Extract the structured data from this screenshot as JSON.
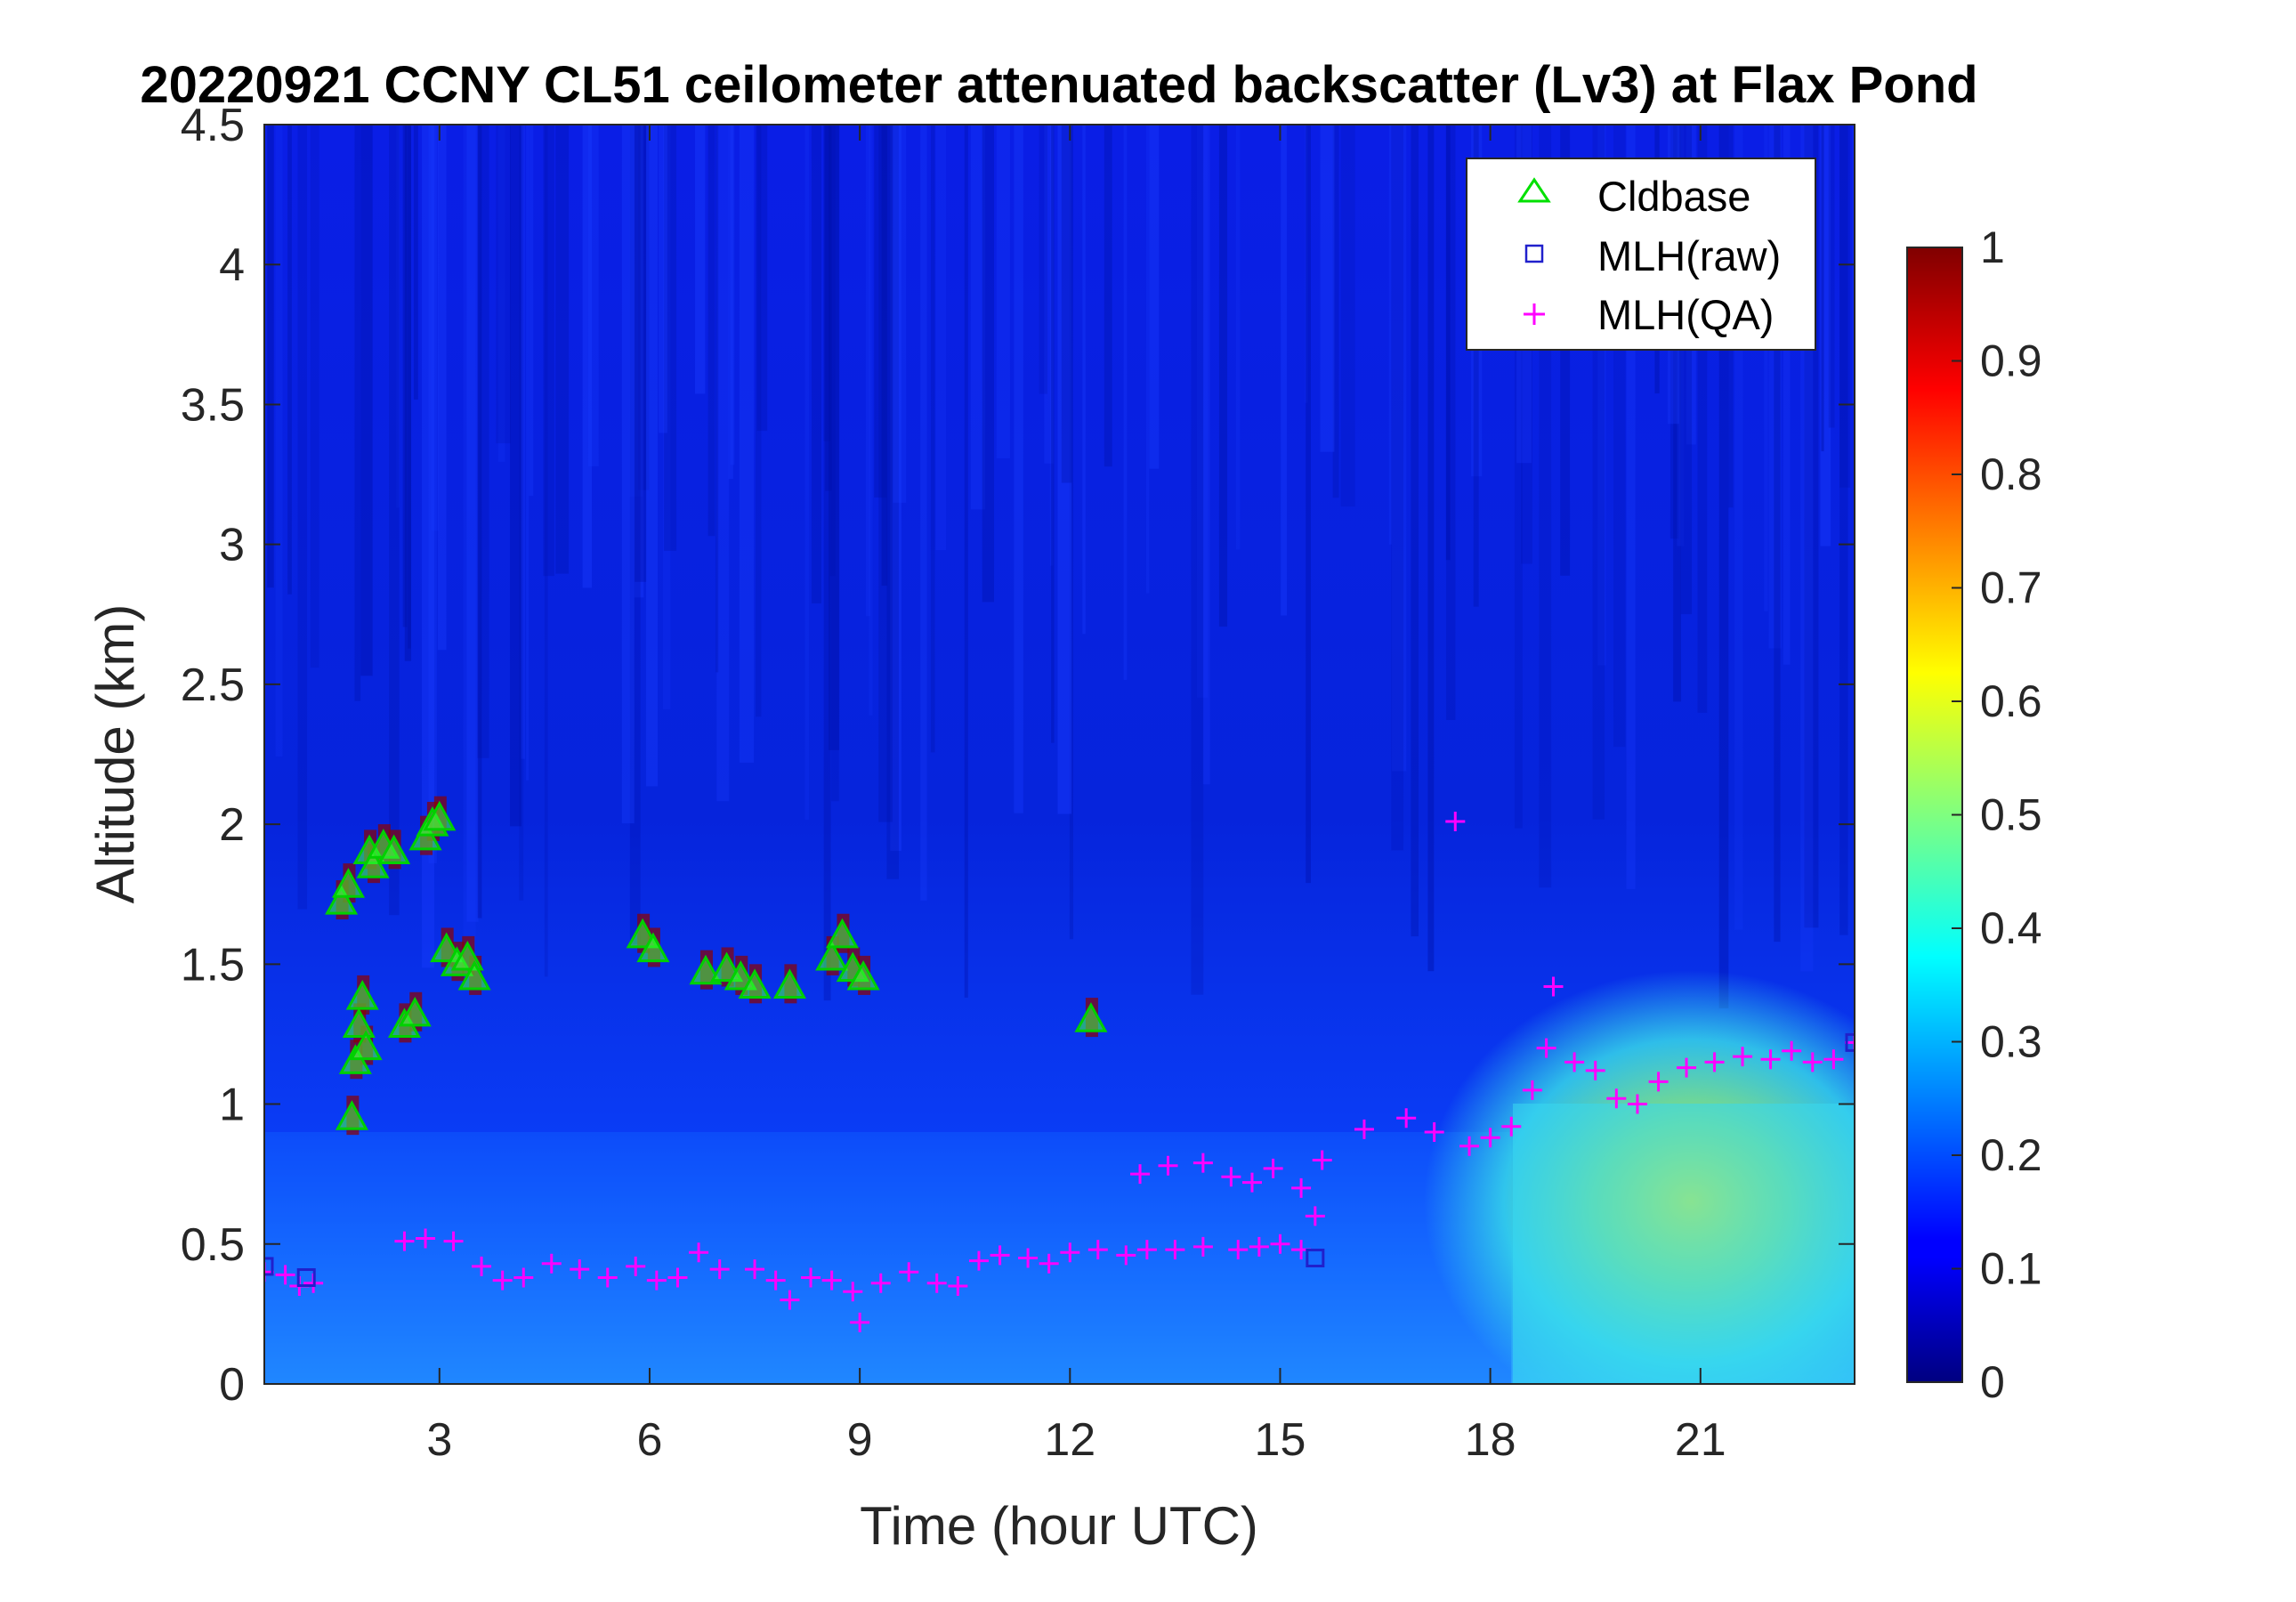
{
  "chart_data": {
    "type": "heatmap",
    "title": "20220921 CCNY CL51 ceilometer attenuated backscatter (Lv3) at Flax Pond",
    "xlabel": "Time (hour UTC)",
    "ylabel": "Altitude (km)",
    "xlim": [
      0.5,
      23.2
    ],
    "ylim": [
      0,
      4.5
    ],
    "xticks": [
      3,
      6,
      9,
      12,
      15,
      18,
      21
    ],
    "yticks": [
      0,
      0.5,
      1,
      1.5,
      2,
      2.5,
      3,
      3.5,
      4,
      4.5
    ],
    "xtick_labels": [
      "3",
      "6",
      "9",
      "12",
      "15",
      "18",
      "21"
    ],
    "ytick_labels": [
      "0",
      "0.5",
      "1",
      "1.5",
      "2",
      "2.5",
      "3",
      "3.5",
      "4",
      "4.5"
    ],
    "colorbar": {
      "colormap": "jet",
      "range": [
        0,
        1
      ],
      "ticks": [
        0,
        0.1,
        0.2,
        0.3,
        0.4,
        0.5,
        0.6,
        0.7,
        0.8,
        0.9,
        1
      ],
      "tick_labels": [
        "0",
        "0.1",
        "0.2",
        "0.3",
        "0.4",
        "0.5",
        "0.6",
        "0.7",
        "0.8",
        "0.9",
        "1"
      ]
    },
    "legend": {
      "placement": "top-right",
      "entries": [
        {
          "name": "Cldbase",
          "marker": "triangle",
          "color": "#00ff00"
        },
        {
          "name": "MLH(raw)",
          "marker": "square",
          "color": "#0000cc"
        },
        {
          "name": "MLH(QA)",
          "marker": "plus",
          "color": "#ff00ff"
        }
      ]
    },
    "series": [
      {
        "name": "Cldbase",
        "points": [
          [
            1.6,
            1.72
          ],
          [
            1.7,
            1.78
          ],
          [
            1.75,
            0.95
          ],
          [
            1.8,
            1.15
          ],
          [
            1.85,
            1.28
          ],
          [
            1.9,
            1.38
          ],
          [
            1.95,
            1.2
          ],
          [
            2.0,
            1.9
          ],
          [
            2.05,
            1.85
          ],
          [
            2.2,
            1.92
          ],
          [
            2.35,
            1.9
          ],
          [
            2.5,
            1.28
          ],
          [
            2.65,
            1.32
          ],
          [
            2.8,
            1.95
          ],
          [
            2.9,
            2.0
          ],
          [
            3.0,
            2.02
          ],
          [
            3.1,
            1.55
          ],
          [
            3.25,
            1.5
          ],
          [
            3.4,
            1.52
          ],
          [
            3.5,
            1.45
          ],
          [
            5.9,
            1.6
          ],
          [
            6.05,
            1.55
          ],
          [
            6.8,
            1.47
          ],
          [
            7.1,
            1.48
          ],
          [
            7.3,
            1.45
          ],
          [
            7.5,
            1.42
          ],
          [
            8.0,
            1.42
          ],
          [
            8.6,
            1.52
          ],
          [
            8.75,
            1.6
          ],
          [
            8.9,
            1.48
          ],
          [
            9.05,
            1.45
          ],
          [
            12.3,
            1.3
          ]
        ]
      },
      {
        "name": "MLH(raw)",
        "points": [
          [
            0.5,
            0.42
          ],
          [
            1.1,
            0.38
          ],
          [
            15.5,
            0.45
          ],
          [
            23.2,
            1.22
          ]
        ]
      },
      {
        "name": "MLH(QA)",
        "points": [
          [
            0.5,
            0.4
          ],
          [
            0.8,
            0.39
          ],
          [
            1.0,
            0.35
          ],
          [
            1.2,
            0.36
          ],
          [
            2.5,
            0.51
          ],
          [
            2.8,
            0.52
          ],
          [
            3.2,
            0.51
          ],
          [
            3.6,
            0.42
          ],
          [
            3.9,
            0.37
          ],
          [
            4.2,
            0.38
          ],
          [
            4.6,
            0.43
          ],
          [
            5.0,
            0.41
          ],
          [
            5.4,
            0.38
          ],
          [
            5.8,
            0.42
          ],
          [
            6.1,
            0.37
          ],
          [
            6.4,
            0.38
          ],
          [
            6.7,
            0.47
          ],
          [
            7.0,
            0.41
          ],
          [
            7.5,
            0.41
          ],
          [
            7.8,
            0.37
          ],
          [
            8.0,
            0.3
          ],
          [
            8.3,
            0.38
          ],
          [
            8.6,
            0.37
          ],
          [
            8.9,
            0.33
          ],
          [
            9.0,
            0.22
          ],
          [
            9.3,
            0.36
          ],
          [
            9.7,
            0.4
          ],
          [
            10.1,
            0.36
          ],
          [
            10.4,
            0.35
          ],
          [
            10.7,
            0.44
          ],
          [
            11.0,
            0.46
          ],
          [
            11.4,
            0.45
          ],
          [
            11.7,
            0.43
          ],
          [
            12.0,
            0.47
          ],
          [
            12.4,
            0.48
          ],
          [
            12.8,
            0.46
          ],
          [
            13.1,
            0.48
          ],
          [
            13.5,
            0.48
          ],
          [
            13.9,
            0.49
          ],
          [
            14.4,
            0.48
          ],
          [
            14.7,
            0.49
          ],
          [
            15.0,
            0.5
          ],
          [
            15.3,
            0.48
          ],
          [
            13.0,
            0.75
          ],
          [
            13.4,
            0.78
          ],
          [
            13.9,
            0.79
          ],
          [
            14.3,
            0.74
          ],
          [
            14.6,
            0.72
          ],
          [
            14.9,
            0.77
          ],
          [
            15.3,
            0.7
          ],
          [
            15.5,
            0.6
          ],
          [
            15.6,
            0.8
          ],
          [
            16.2,
            0.91
          ],
          [
            16.8,
            0.95
          ],
          [
            17.2,
            0.9
          ],
          [
            17.5,
            2.01
          ],
          [
            17.7,
            0.85
          ],
          [
            18.0,
            0.88
          ],
          [
            18.3,
            0.92
          ],
          [
            18.6,
            1.05
          ],
          [
            18.8,
            1.2
          ],
          [
            18.9,
            1.42
          ],
          [
            19.2,
            1.15
          ],
          [
            19.5,
            1.12
          ],
          [
            19.8,
            1.02
          ],
          [
            20.1,
            1.0
          ],
          [
            20.4,
            1.08
          ],
          [
            20.8,
            1.13
          ],
          [
            21.2,
            1.15
          ],
          [
            21.6,
            1.17
          ],
          [
            22.0,
            1.16
          ],
          [
            22.3,
            1.19
          ],
          [
            22.6,
            1.15
          ],
          [
            22.9,
            1.16
          ],
          [
            23.2,
            1.22
          ]
        ]
      }
    ]
  }
}
